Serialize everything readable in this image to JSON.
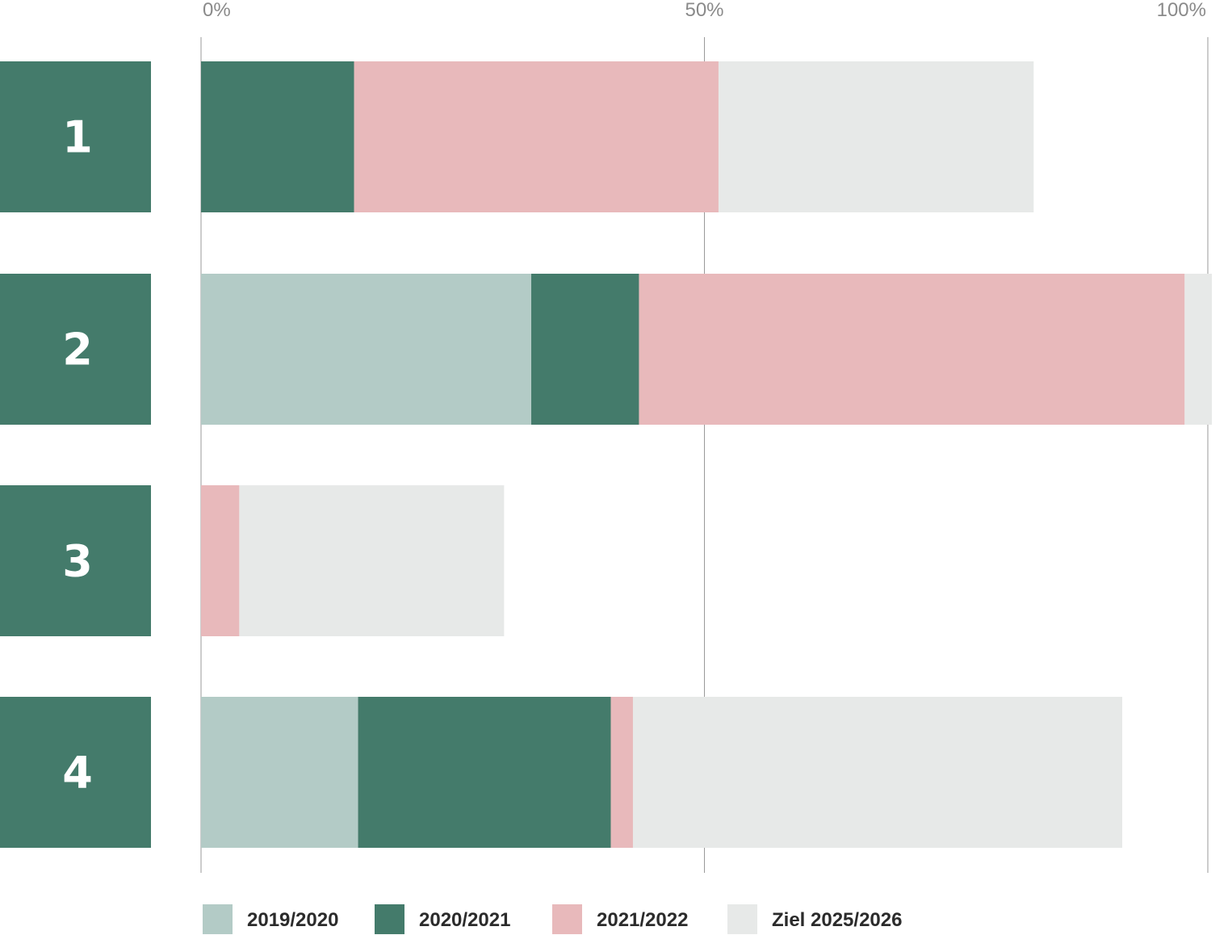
{
  "chart_data": {
    "type": "bar",
    "orientation": "horizontal",
    "stacked": true,
    "x_ticks": [
      "0%",
      "50%",
      "100%"
    ],
    "xlim": [
      0,
      100
    ],
    "grid": true,
    "legend_position": "bottom",
    "categories": [
      "1",
      "2",
      "3",
      "4"
    ],
    "series": [
      {
        "name": "2019/2020",
        "color": "#b3cbc6",
        "values": [
          0,
          32.8,
          0,
          15.6
        ]
      },
      {
        "name": "2020/2021",
        "color": "#447b6b",
        "values": [
          15.2,
          10.7,
          0,
          25.1
        ]
      },
      {
        "name": "2021/2022",
        "color": "#e8b9bb",
        "values": [
          36.2,
          54.2,
          3.8,
          2.2
        ]
      },
      {
        "name": "Ziel 2025/2026",
        "color": "#e7e9e8",
        "values": [
          31.3,
          2.7,
          26.3,
          48.6
        ]
      }
    ],
    "label_box_color": "#447b6b"
  }
}
